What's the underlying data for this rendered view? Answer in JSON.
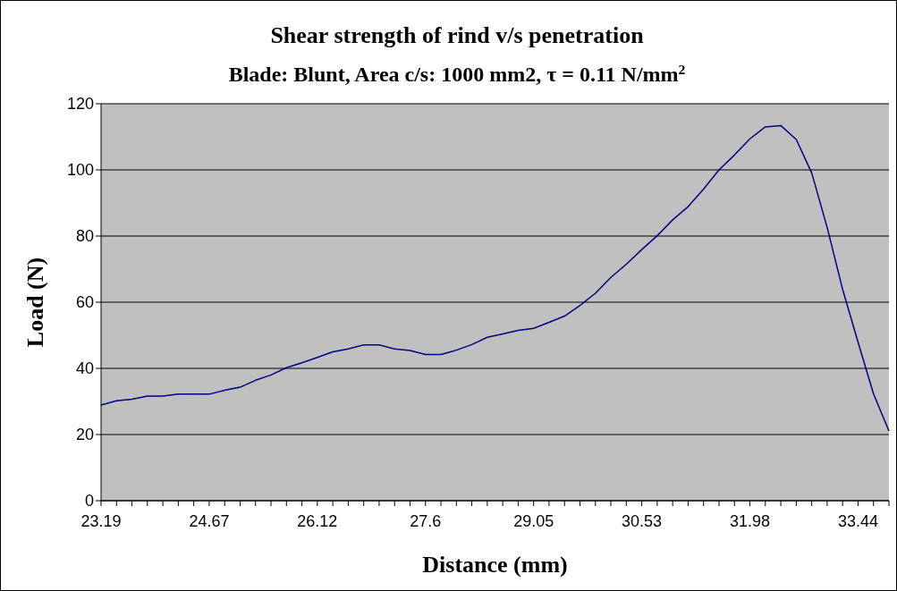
{
  "chart_data": {
    "type": "line",
    "title": "Shear strength of rind v/s penetration",
    "subtitle": "Blade: Blunt, Area c/s: 1000 mm2, τ = 0.11 N/mm$^{2}$",
    "xlabel": "Distance (mm)",
    "ylabel": "Load (N)",
    "categories": [
      "23.19",
      null,
      null,
      null,
      null,
      null,
      null,
      "24.67",
      null,
      null,
      null,
      null,
      null,
      null,
      "26.12",
      null,
      null,
      null,
      null,
      null,
      null,
      "27.6",
      null,
      null,
      null,
      null,
      null,
      null,
      "29.05",
      null,
      null,
      null,
      null,
      null,
      null,
      "30.53",
      null,
      null,
      null,
      null,
      null,
      null,
      "31.98",
      null,
      null,
      null,
      null,
      null,
      null,
      "33.44",
      null,
      null
    ],
    "series": [
      {
        "color": "#000080",
        "values": [
          28.9,
          30.2,
          30.7,
          31.6,
          31.6,
          32.2,
          32.2,
          32.2,
          33.4,
          34.3,
          36.4,
          38.0,
          40.2,
          41.7,
          43.3,
          45.0,
          45.9,
          47.1,
          47.1,
          45.9,
          45.4,
          44.2,
          44.2,
          45.5,
          47.2,
          49.4,
          50.4,
          51.5,
          52.1,
          53.9,
          55.8,
          59.0,
          62.7,
          67.5,
          71.5,
          75.9,
          80.1,
          84.9,
          88.9,
          94.2,
          100.0,
          104.5,
          109.4,
          113.0,
          113.4,
          109.2,
          99.1,
          82.6,
          63.9,
          47.9,
          32.3,
          21.1
        ]
      }
    ],
    "ylim": [
      0,
      120
    ],
    "yticks": [
      0,
      20,
      40,
      60,
      80,
      100,
      120
    ],
    "grid": "y",
    "legend": false,
    "marker": "none",
    "line_style": "solid"
  }
}
